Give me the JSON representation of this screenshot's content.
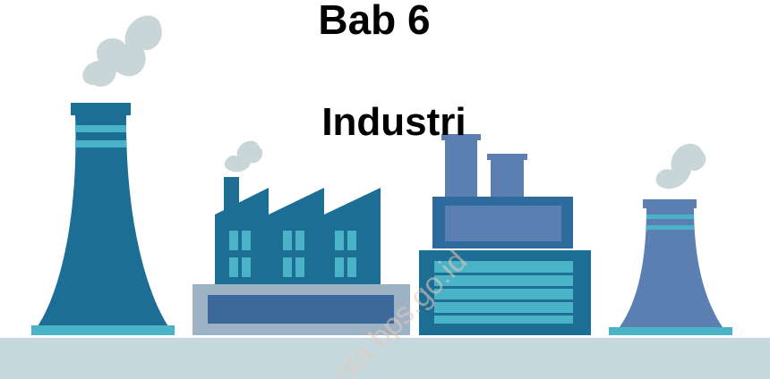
{
  "header": {
    "title": "Bab 6",
    "subtitle": "Industri"
  },
  "watermark": "ota.bps.go.id"
}
